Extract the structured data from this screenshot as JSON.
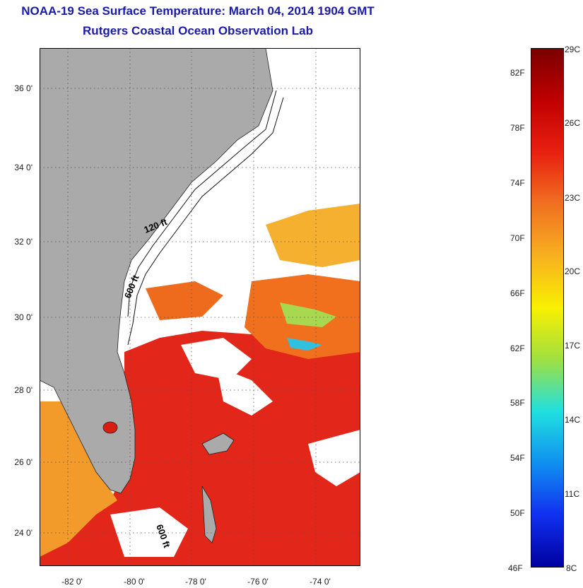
{
  "header": {
    "title": "NOAA-19 Sea Surface Temperature:  March 04, 2014 1904 GMT",
    "subtitle": "Rutgers Coastal Ocean Observation Lab"
  },
  "map": {
    "lat_labels": [
      "36 0'",
      "34 0'",
      "32 0'",
      "30 0'",
      "28 0'",
      "26 0'",
      "24 0'"
    ],
    "lon_labels": [
      "-82 0'",
      "-80 0'",
      "-78 0'",
      "-76 0'",
      "-74 0'"
    ],
    "contours": {
      "c120": "120 ft",
      "c600a": "600 ft",
      "c600b": "600 ft"
    },
    "colors": {
      "land": "#aaaaaa",
      "cloud": "#ffffff",
      "warm": "#e02010",
      "mid": "#f08020",
      "cool": "#f0d040"
    }
  },
  "colorbar": {
    "fahrenheit": [
      "82F",
      "78F",
      "74F",
      "70F",
      "66F",
      "62F",
      "58F",
      "54F",
      "50F",
      "46F"
    ],
    "celsius": [
      "29C",
      "26C",
      "23C",
      "20C",
      "17C",
      "14C",
      "11C",
      "8C"
    ],
    "stops": [
      "#7a0000",
      "#c00000",
      "#e82010",
      "#f07020",
      "#f8b020",
      "#f8f000",
      "#a0e040",
      "#20e0e0",
      "#1090f0",
      "#1030f0",
      "#0000a0"
    ]
  }
}
